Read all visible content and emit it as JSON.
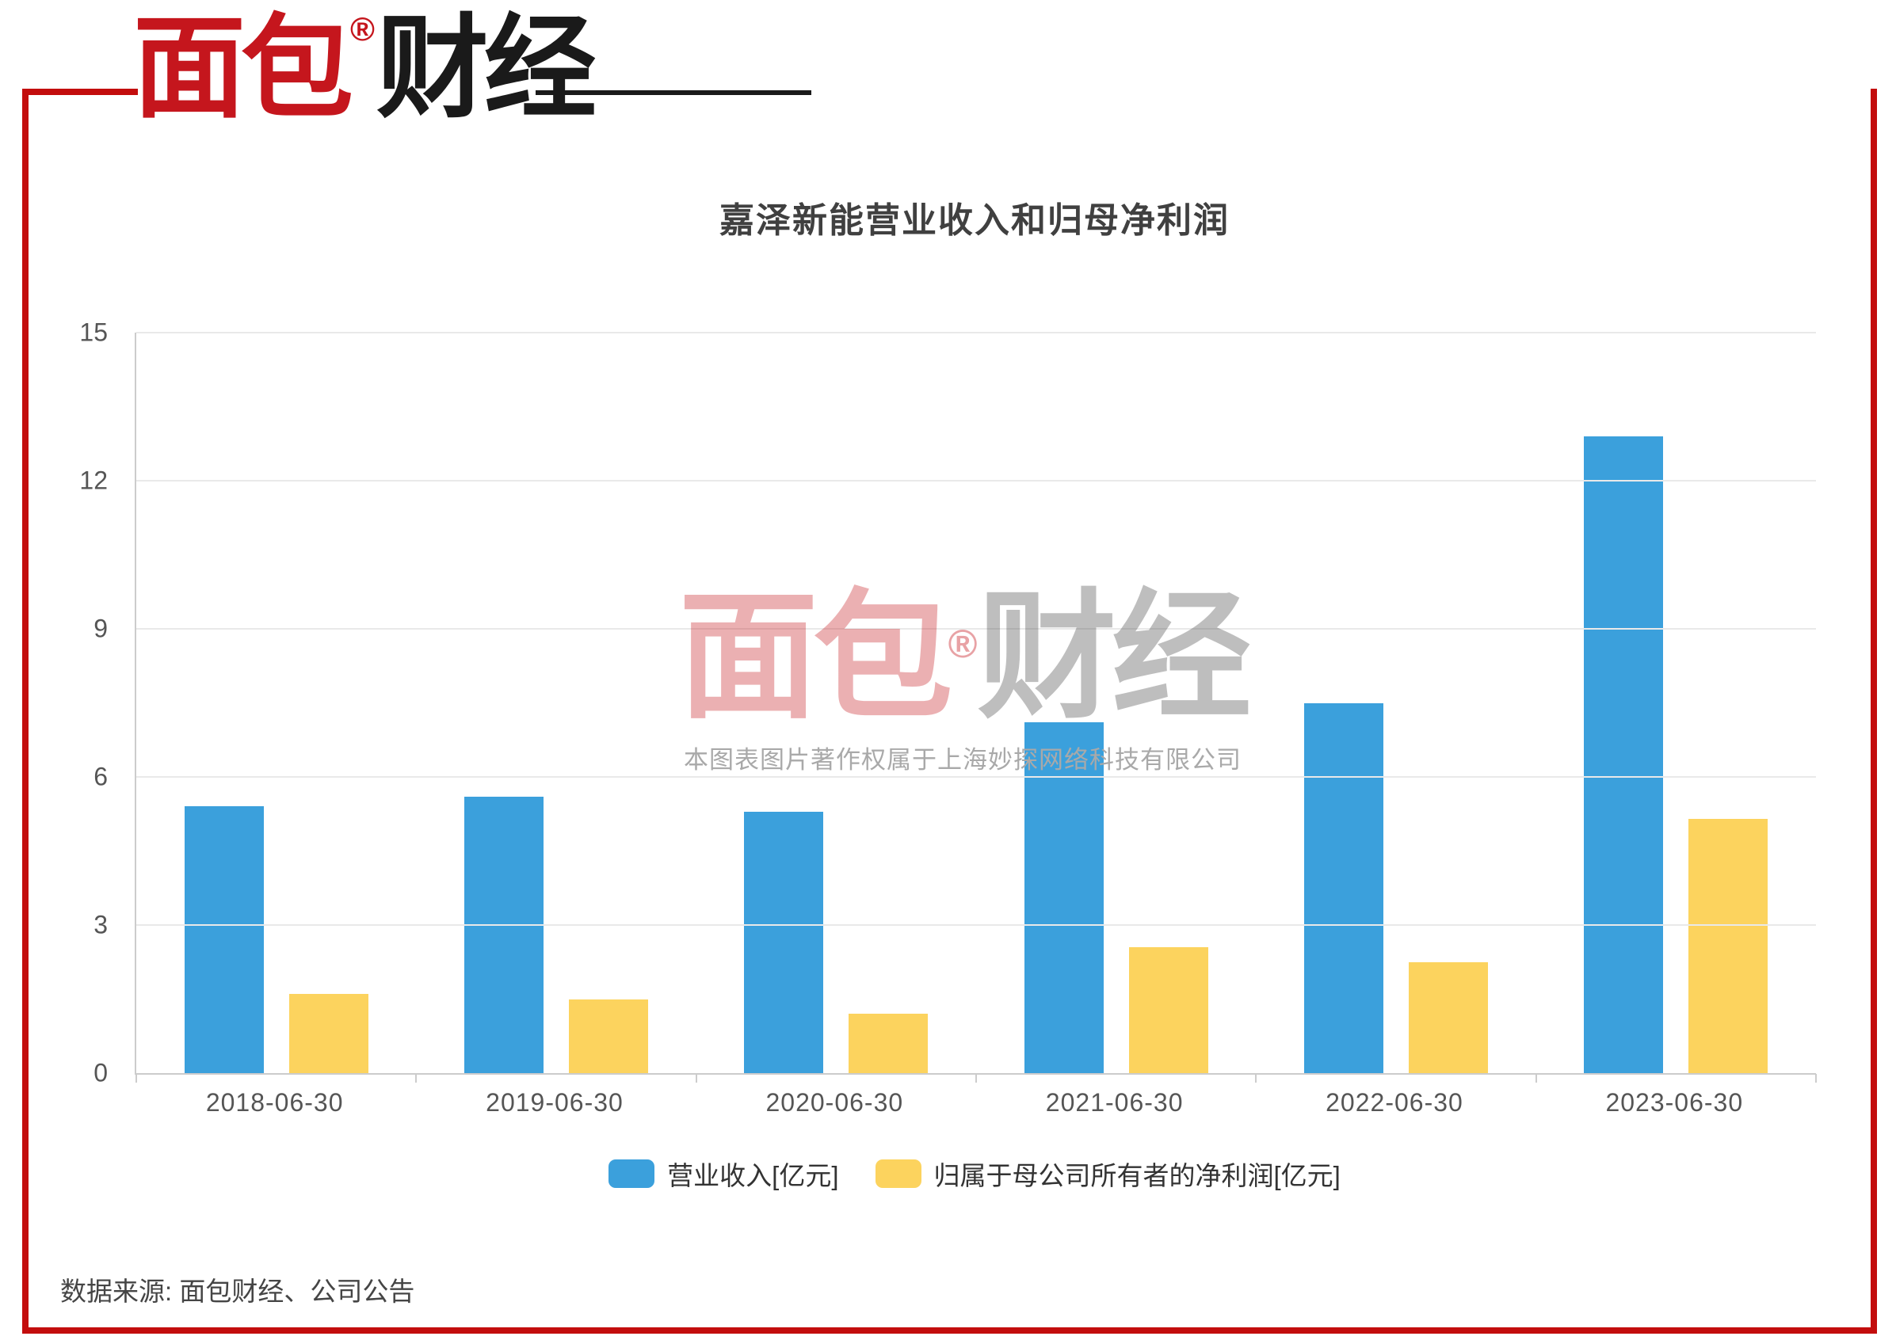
{
  "logo": {
    "red_text": "面包",
    "reg_mark": "®",
    "black_text": "财经"
  },
  "watermark": {
    "red_text": "面包",
    "reg_mark": "®",
    "gray_text": "财经",
    "caption": "本图表图片著作权属于上海妙探网络科技有限公司"
  },
  "source_note": "数据来源: 面包财经、公司公告",
  "chart_data": {
    "type": "bar",
    "title": "嘉泽新能营业收入和归母净利润",
    "categories": [
      "2018-06-30",
      "2019-06-30",
      "2020-06-30",
      "2021-06-30",
      "2022-06-30",
      "2023-06-30"
    ],
    "series": [
      {
        "name": "营业收入[亿元]",
        "color": "#3BA0DC",
        "values": [
          5.4,
          5.6,
          5.3,
          7.1,
          7.5,
          12.9
        ]
      },
      {
        "name": "归属于母公司所有者的净利润[亿元]",
        "color": "#FCD35E",
        "values": [
          1.6,
          1.5,
          1.2,
          2.55,
          2.25,
          5.15
        ]
      }
    ],
    "ylim": [
      0,
      15
    ],
    "yticks": [
      0,
      3,
      6,
      9,
      12,
      15
    ],
    "grid": true,
    "legend_position": "bottom"
  },
  "colors": {
    "brand_red": "#C5161D",
    "border_red": "#C30D0D",
    "black": "#1A1A1A",
    "title_gray": "#404040",
    "axis_gray": "#CCCCCC",
    "grid_gray": "#E9E9E9",
    "tick_text": "#555555",
    "legend_text": "#333333",
    "source_text": "#454545",
    "watermark_gray": "#A9A9A9",
    "bar_blue": "#3BA0DC",
    "bar_yellow": "#FCD35E"
  }
}
